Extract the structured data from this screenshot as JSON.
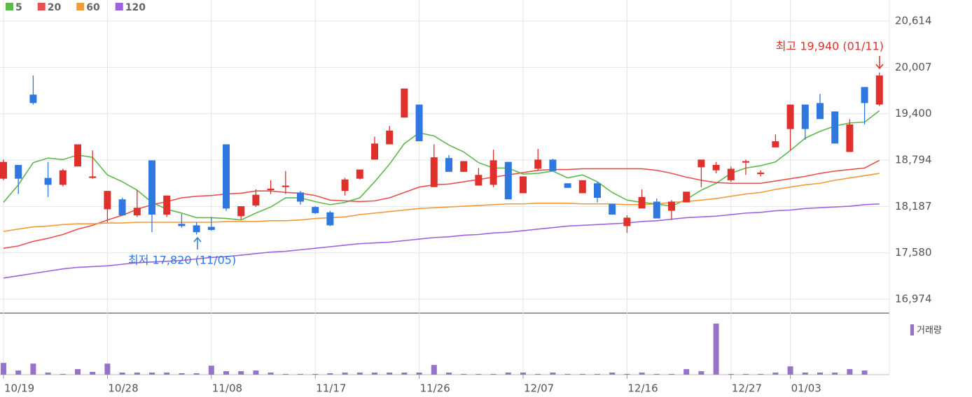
{
  "chart_data": {
    "type": "candlestick",
    "categories": [
      "10/19",
      null,
      null,
      null,
      null,
      null,
      null,
      "10/28",
      null,
      null,
      null,
      null,
      null,
      null,
      "11/08",
      null,
      null,
      null,
      null,
      null,
      null,
      "11/17",
      null,
      null,
      null,
      null,
      null,
      null,
      "11/26",
      null,
      null,
      null,
      null,
      null,
      null,
      "12/07",
      null,
      null,
      null,
      null,
      null,
      null,
      "12/16",
      null,
      null,
      null,
      null,
      null,
      null,
      "12/27",
      null,
      null,
      null,
      "01/03",
      null,
      null,
      null,
      null,
      null,
      null
    ],
    "open": [
      18550,
      18730,
      19650,
      18560,
      18470,
      18710,
      18560,
      18150,
      18280,
      18070,
      18790,
      18080,
      17960,
      17940,
      17920,
      19000,
      18060,
      18200,
      18400,
      18440,
      18370,
      18180,
      18110,
      18390,
      18550,
      18800,
      19000,
      19350,
      19520,
      18440,
      18820,
      18640,
      18460,
      18470,
      18770,
      18360,
      18680,
      18800,
      18490,
      18360,
      18490,
      18220,
      17930,
      18160,
      18250,
      18130,
      18240,
      18700,
      18660,
      18530,
      18760,
      18610,
      18960,
      19200,
      19520,
      19540,
      19430,
      18900,
      19750,
      19520
    ],
    "high": [
      18800,
      18730,
      19900,
      18770,
      18680,
      19000,
      18920,
      18390,
      18300,
      18400,
      18790,
      18330,
      18090,
      17980,
      18050,
      19000,
      18190,
      18410,
      18530,
      18650,
      18390,
      18190,
      18130,
      18560,
      18670,
      19100,
      19240,
      19730,
      19520,
      19000,
      18860,
      18780,
      18690,
      18930,
      18770,
      18580,
      18940,
      18810,
      18490,
      18530,
      18510,
      18220,
      18070,
      18410,
      18290,
      18270,
      18380,
      18800,
      18770,
      18710,
      18800,
      18660,
      19130,
      19520,
      19520,
      19660,
      19430,
      19330,
      19750,
      19940
    ],
    "low": [
      18530,
      18350,
      19520,
      18310,
      18450,
      18710,
      18550,
      17980,
      18070,
      18050,
      17850,
      18050,
      17910,
      17820,
      17870,
      18130,
      18020,
      18180,
      18350,
      18350,
      18210,
      18090,
      17930,
      18330,
      18540,
      18800,
      19000,
      19350,
      19040,
      18440,
      18640,
      18640,
      18460,
      18440,
      18280,
      18360,
      18660,
      18650,
      18430,
      18360,
      18240,
      18080,
      17840,
      18160,
      18030,
      18010,
      18240,
      18440,
      18620,
      18510,
      18600,
      18580,
      18960,
      18920,
      19060,
      19330,
      19010,
      18900,
      19260,
      19500
    ],
    "close": [
      18770,
      18550,
      19540,
      18470,
      18660,
      19000,
      18580,
      18390,
      18070,
      18170,
      18080,
      18330,
      17930,
      17850,
      17880,
      18160,
      18190,
      18340,
      18420,
      18460,
      18250,
      18100,
      17940,
      18540,
      18670,
      19010,
      19180,
      19730,
      19040,
      18830,
      18640,
      18780,
      18600,
      18790,
      18280,
      18580,
      18800,
      18650,
      18430,
      18530,
      18300,
      18080,
      18040,
      18310,
      18030,
      18250,
      18380,
      18800,
      18730,
      18680,
      18780,
      18630,
      19040,
      19520,
      19200,
      19330,
      19010,
      19260,
      19540,
      19900
    ],
    "up_color": "#e0302c",
    "down_color": "#2f78e0",
    "ma_series": [
      {
        "name": "5",
        "color": "#5cba4a",
        "values": [
          18240,
          18470,
          18760,
          18820,
          18800,
          18860,
          18830,
          18600,
          18510,
          18400,
          18240,
          18150,
          18100,
          18040,
          18040,
          18030,
          18010,
          18100,
          18180,
          18300,
          18300,
          18250,
          18210,
          18240,
          18300,
          18510,
          18740,
          19010,
          19150,
          19110,
          18990,
          18900,
          18760,
          18690,
          18690,
          18610,
          18620,
          18650,
          18560,
          18600,
          18510,
          18370,
          18270,
          18240,
          18220,
          18190,
          18280,
          18400,
          18490,
          18620,
          18690,
          18720,
          18770,
          18920,
          19080,
          19170,
          19240,
          19280,
          19290,
          19440
        ]
      },
      {
        "name": "20",
        "color": "#e8504f",
        "values": [
          17640,
          17670,
          17730,
          17770,
          17820,
          17890,
          17940,
          18010,
          18070,
          18150,
          18210,
          18250,
          18300,
          18320,
          18330,
          18350,
          18360,
          18390,
          18390,
          18370,
          18360,
          18330,
          18270,
          18260,
          18250,
          18260,
          18300,
          18370,
          18440,
          18470,
          18480,
          18510,
          18540,
          18570,
          18600,
          18630,
          18660,
          18670,
          18670,
          18680,
          18680,
          18680,
          18680,
          18680,
          18660,
          18620,
          18570,
          18530,
          18500,
          18490,
          18490,
          18490,
          18520,
          18550,
          18580,
          18620,
          18650,
          18670,
          18690,
          18790
        ]
      },
      {
        "name": "60",
        "color": "#f29a36",
        "values": [
          17860,
          17890,
          17920,
          17930,
          17950,
          17960,
          17960,
          17970,
          17970,
          17980,
          17980,
          17980,
          17980,
          17980,
          17980,
          17990,
          17990,
          17990,
          18000,
          18000,
          18010,
          18030,
          18040,
          18050,
          18080,
          18100,
          18120,
          18140,
          18160,
          18170,
          18180,
          18190,
          18200,
          18210,
          18220,
          18220,
          18230,
          18230,
          18230,
          18220,
          18220,
          18220,
          18210,
          18210,
          18220,
          18240,
          18250,
          18270,
          18290,
          18320,
          18350,
          18370,
          18410,
          18440,
          18470,
          18490,
          18530,
          18560,
          18590,
          18620
        ]
      },
      {
        "name": "120",
        "color": "#9d62e0",
        "values": [
          17250,
          17280,
          17310,
          17340,
          17370,
          17390,
          17400,
          17410,
          17430,
          17450,
          17460,
          17470,
          17480,
          17500,
          17520,
          17530,
          17550,
          17570,
          17590,
          17600,
          17620,
          17640,
          17660,
          17680,
          17700,
          17710,
          17720,
          17740,
          17760,
          17780,
          17790,
          17810,
          17820,
          17840,
          17850,
          17870,
          17890,
          17910,
          17930,
          17940,
          17950,
          17960,
          17970,
          17990,
          18000,
          18020,
          18040,
          18050,
          18060,
          18080,
          18100,
          18110,
          18130,
          18140,
          18160,
          18170,
          18180,
          18190,
          18210,
          18220
        ]
      }
    ],
    "volume": {
      "name": "거래량",
      "color": "#9473c9",
      "values": [
        17,
        6,
        16,
        3,
        1,
        8,
        4,
        16,
        3,
        3,
        3,
        3,
        2,
        2,
        13,
        5,
        5,
        6,
        3,
        1,
        1,
        1,
        2,
        3,
        3,
        3,
        3,
        3,
        3,
        14,
        3,
        1,
        1,
        1,
        3,
        3,
        1,
        3,
        1,
        1,
        1,
        3,
        1,
        3,
        1,
        1,
        8,
        5,
        74,
        1,
        1,
        1,
        3,
        12,
        3,
        3,
        3,
        8,
        6,
        0
      ]
    },
    "ylim": [
      16974,
      20614
    ],
    "yticks": [
      {
        "value": 20614,
        "label": "20,614"
      },
      {
        "value": 20007,
        "label": "20,007"
      },
      {
        "value": 19400,
        "label": "19,400"
      },
      {
        "value": 18794,
        "label": "18,794"
      },
      {
        "value": 18187,
        "label": "18,187"
      },
      {
        "value": 17580,
        "label": "17,580"
      },
      {
        "value": 16974,
        "label": "16,974"
      }
    ],
    "grid": true,
    "annotations": [
      {
        "text": "최고 19,940 (01/11)",
        "color": "#e0302c"
      },
      {
        "text": "최저 17,820 (11/05)",
        "color": "#2f78e0"
      }
    ]
  }
}
